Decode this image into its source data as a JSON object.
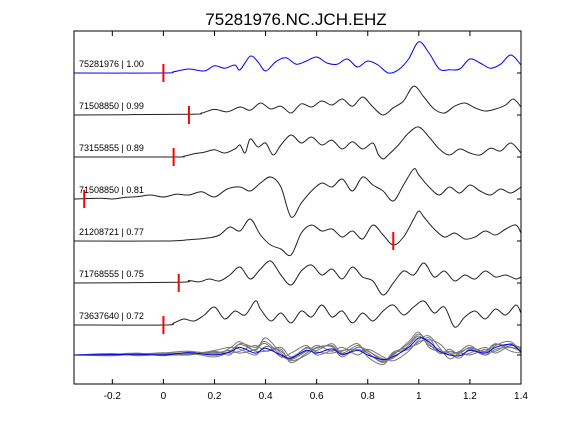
{
  "colors": {
    "primary_trace": "#0000ff",
    "trace": "#222222",
    "stack_gray": "#777777",
    "pick": "#ff0000",
    "axis": "#000000"
  },
  "chart_data": {
    "type": "line",
    "title": "75281976.NC.JCH.EHZ",
    "xlabel": "",
    "ylabel": "",
    "xlim": [
      -0.35,
      1.4
    ],
    "xticks": [
      -0.2,
      0,
      0.2,
      0.4,
      0.6,
      0.8,
      1,
      1.2,
      1.4
    ],
    "xtick_labels": [
      "-0.2",
      "0",
      "0.2",
      "0.4",
      "0.6",
      "0.8",
      "1",
      "1.2",
      "1.4"
    ],
    "grid": false,
    "traces": [
      {
        "label": "75281976 | 1.00",
        "color": "primary",
        "pick": 0.0,
        "x": [
          -0.35,
          0.0,
          0.04,
          0.1,
          0.16,
          0.2,
          0.24,
          0.28,
          0.3,
          0.34,
          0.37,
          0.4,
          0.44,
          0.48,
          0.52,
          0.56,
          0.6,
          0.64,
          0.68,
          0.72,
          0.76,
          0.8,
          0.84,
          0.88,
          0.92,
          0.96,
          1.0,
          1.04,
          1.08,
          1.12,
          1.16,
          1.2,
          1.24,
          1.28,
          1.32,
          1.36,
          1.4
        ],
        "y": [
          0.0,
          0.0,
          0.03,
          0.1,
          0.05,
          0.18,
          0.12,
          0.2,
          0.08,
          0.42,
          0.28,
          0.05,
          0.28,
          0.38,
          0.22,
          0.3,
          0.4,
          0.25,
          0.22,
          0.35,
          0.15,
          0.3,
          0.2,
          0.0,
          0.08,
          0.35,
          0.78,
          0.5,
          0.1,
          0.08,
          0.1,
          0.35,
          0.25,
          0.12,
          0.22,
          0.45,
          0.2
        ]
      },
      {
        "label": "71508850 | 0.99",
        "color": "trace",
        "pick": 0.1,
        "x": [
          -0.35,
          0.1,
          0.15,
          0.2,
          0.25,
          0.3,
          0.34,
          0.38,
          0.42,
          0.46,
          0.5,
          0.54,
          0.58,
          0.62,
          0.66,
          0.7,
          0.74,
          0.78,
          0.82,
          0.86,
          0.9,
          0.94,
          0.98,
          1.02,
          1.06,
          1.1,
          1.14,
          1.18,
          1.22,
          1.26,
          1.3,
          1.34,
          1.37,
          1.4
        ],
        "y": [
          0.0,
          0.02,
          0.05,
          0.14,
          0.08,
          0.2,
          0.12,
          0.3,
          0.15,
          0.22,
          0.05,
          0.28,
          0.2,
          0.35,
          0.25,
          0.4,
          0.22,
          0.45,
          0.2,
          0.0,
          0.18,
          0.35,
          0.72,
          0.45,
          0.15,
          0.05,
          0.22,
          0.3,
          0.18,
          0.1,
          0.15,
          0.25,
          0.4,
          0.2
        ]
      },
      {
        "label": "73155855 | 0.89",
        "color": "trace",
        "pick": 0.04,
        "x": [
          -0.35,
          0.04,
          0.08,
          0.12,
          0.16,
          0.2,
          0.24,
          0.28,
          0.3,
          0.32,
          0.34,
          0.37,
          0.4,
          0.43,
          0.46,
          0.5,
          0.54,
          0.58,
          0.62,
          0.66,
          0.7,
          0.74,
          0.78,
          0.82,
          0.84,
          0.86,
          0.88,
          0.92,
          0.96,
          1.0,
          1.04,
          1.08,
          1.12,
          1.16,
          1.2,
          1.24,
          1.28,
          1.32,
          1.36,
          1.4
        ],
        "y": [
          0.0,
          0.0,
          0.02,
          0.08,
          0.12,
          0.18,
          0.1,
          0.2,
          0.3,
          0.1,
          0.45,
          0.25,
          0.35,
          0.05,
          0.3,
          0.55,
          0.35,
          0.5,
          0.3,
          0.42,
          0.2,
          0.38,
          0.2,
          0.35,
          0.08,
          -0.05,
          0.05,
          0.3,
          0.6,
          0.75,
          0.5,
          0.2,
          0.05,
          0.2,
          0.1,
          0.05,
          0.22,
          0.15,
          0.35,
          0.1
        ]
      },
      {
        "label": "71508850 | 0.81",
        "color": "trace",
        "pick": -0.31,
        "x": [
          -0.35,
          -0.25,
          -0.2,
          -0.15,
          -0.1,
          -0.05,
          0.0,
          0.05,
          0.1,
          0.15,
          0.2,
          0.25,
          0.3,
          0.34,
          0.38,
          0.42,
          0.46,
          0.5,
          0.54,
          0.58,
          0.62,
          0.66,
          0.7,
          0.74,
          0.78,
          0.82,
          0.86,
          0.9,
          0.94,
          0.98,
          1.0,
          1.04,
          1.08,
          1.12,
          1.16,
          1.2,
          1.24,
          1.28,
          1.32,
          1.36,
          1.4
        ],
        "y": [
          0.0,
          0.02,
          0.0,
          0.04,
          0.06,
          0.1,
          0.05,
          0.12,
          0.1,
          0.18,
          0.05,
          0.25,
          0.3,
          0.2,
          0.4,
          0.55,
          0.3,
          -0.45,
          -0.1,
          0.2,
          0.4,
          0.3,
          0.5,
          0.2,
          0.55,
          0.35,
          0.2,
          -0.05,
          0.35,
          0.75,
          0.6,
          0.3,
          0.1,
          0.3,
          0.15,
          0.35,
          0.2,
          0.1,
          0.25,
          0.15,
          0.3
        ]
      },
      {
        "label": "21208721 | 0.77",
        "color": "trace",
        "pick": 0.9,
        "x": [
          -0.35,
          0.0,
          0.1,
          0.18,
          0.22,
          0.26,
          0.3,
          0.34,
          0.38,
          0.42,
          0.46,
          0.5,
          0.54,
          0.58,
          0.62,
          0.66,
          0.7,
          0.74,
          0.78,
          0.82,
          0.86,
          0.9,
          0.94,
          0.98,
          1.0,
          1.02,
          1.06,
          1.1,
          1.14,
          1.18,
          1.22,
          1.26,
          1.3,
          1.34,
          1.38,
          1.4
        ],
        "y": [
          0.0,
          0.0,
          0.03,
          0.08,
          0.15,
          0.35,
          0.25,
          0.55,
          0.15,
          -0.1,
          -0.2,
          -0.35,
          0.2,
          0.4,
          0.25,
          0.3,
          0.1,
          0.25,
          0.05,
          0.4,
          0.15,
          -0.1,
          0.1,
          0.55,
          0.75,
          0.6,
          0.3,
          0.1,
          0.2,
          0.05,
          0.1,
          0.25,
          0.15,
          0.3,
          0.4,
          0.2
        ]
      },
      {
        "label": "71768555 | 0.75",
        "color": "trace",
        "pick": 0.06,
        "x": [
          -0.35,
          0.06,
          0.1,
          0.14,
          0.18,
          0.22,
          0.26,
          0.3,
          0.34,
          0.38,
          0.42,
          0.46,
          0.5,
          0.54,
          0.58,
          0.62,
          0.66,
          0.7,
          0.74,
          0.78,
          0.82,
          0.86,
          0.9,
          0.94,
          0.98,
          1.02,
          1.06,
          1.1,
          1.14,
          1.18,
          1.22,
          1.26,
          1.3,
          1.34,
          1.38,
          1.4
        ],
        "y": [
          0.0,
          0.02,
          0.06,
          0.03,
          0.1,
          0.05,
          0.2,
          0.4,
          0.1,
          0.35,
          0.55,
          0.2,
          -0.05,
          0.3,
          0.45,
          0.2,
          0.35,
          0.1,
          0.4,
          0.15,
          0.05,
          -0.3,
          0.0,
          0.3,
          0.2,
          0.5,
          0.15,
          0.3,
          0.05,
          0.2,
          0.1,
          0.3,
          0.15,
          0.2,
          0.1,
          0.15
        ]
      },
      {
        "label": "73637640 | 0.72",
        "color": "trace",
        "pick": 0.0,
        "x": [
          -0.35,
          0.0,
          0.04,
          0.08,
          0.12,
          0.16,
          0.2,
          0.24,
          0.28,
          0.32,
          0.36,
          0.38,
          0.42,
          0.46,
          0.5,
          0.54,
          0.58,
          0.62,
          0.66,
          0.7,
          0.74,
          0.78,
          0.82,
          0.86,
          0.9,
          0.94,
          0.98,
          1.02,
          1.06,
          1.1,
          1.14,
          1.18,
          1.22,
          1.26,
          1.3,
          1.34,
          1.38,
          1.4
        ],
        "y": [
          0.0,
          0.0,
          0.05,
          0.15,
          0.1,
          0.25,
          0.45,
          0.15,
          0.35,
          0.25,
          0.6,
          0.4,
          0.1,
          0.3,
          0.05,
          0.35,
          0.2,
          0.5,
          0.2,
          0.35,
          0.05,
          0.3,
          0.1,
          0.35,
          0.5,
          0.25,
          0.45,
          0.6,
          0.3,
          0.45,
          -0.05,
          0.2,
          0.35,
          0.15,
          0.4,
          0.25,
          0.5,
          0.3
        ]
      }
    ],
    "stack": {
      "reference": {
        "x": [
          -0.35,
          -0.2,
          -0.1,
          0.0,
          0.1,
          0.2,
          0.26,
          0.3,
          0.36,
          0.4,
          0.46,
          0.5,
          0.56,
          0.6,
          0.66,
          0.7,
          0.76,
          0.8,
          0.86,
          0.9,
          0.96,
          1.0,
          1.04,
          1.08,
          1.12,
          1.16,
          1.2,
          1.26,
          1.3,
          1.36,
          1.4
        ],
        "y": [
          0.0,
          0.01,
          0.02,
          0.0,
          0.06,
          0.0,
          0.08,
          0.2,
          0.05,
          0.18,
          0.0,
          -0.08,
          0.12,
          0.05,
          0.16,
          0.02,
          0.12,
          0.0,
          -0.12,
          -0.04,
          0.2,
          0.45,
          0.35,
          0.1,
          0.0,
          -0.02,
          0.12,
          0.05,
          0.2,
          0.28,
          0.08
        ]
      },
      "overlays": [
        {
          "x": [
            -0.35,
            -0.2,
            -0.1,
            0.0,
            0.1,
            0.2,
            0.26,
            0.3,
            0.36,
            0.4,
            0.46,
            0.5,
            0.56,
            0.6,
            0.66,
            0.7,
            0.76,
            0.8,
            0.86,
            0.9,
            0.96,
            1.0,
            1.04,
            1.08,
            1.12,
            1.16,
            1.2,
            1.26,
            1.3,
            1.36,
            1.4
          ],
          "y": [
            0.0,
            0.03,
            0.0,
            0.05,
            0.1,
            0.02,
            0.18,
            0.35,
            0.12,
            0.45,
            0.05,
            -0.1,
            0.2,
            0.12,
            0.3,
            0.05,
            0.25,
            0.05,
            -0.18,
            0.02,
            0.3,
            0.55,
            0.3,
            0.05,
            0.1,
            0.05,
            0.2,
            0.08,
            0.28,
            0.2,
            0.1
          ]
        },
        {
          "x": [
            -0.35,
            -0.2,
            -0.1,
            0.0,
            0.1,
            0.2,
            0.26,
            0.3,
            0.36,
            0.4,
            0.46,
            0.5,
            0.56,
            0.6,
            0.66,
            0.7,
            0.76,
            0.8,
            0.86,
            0.9,
            0.96,
            1.0,
            1.04,
            1.08,
            1.12,
            1.16,
            1.2,
            1.26,
            1.3,
            1.36,
            1.4
          ],
          "y": [
            0.0,
            -0.02,
            0.03,
            0.0,
            0.02,
            0.08,
            0.05,
            0.1,
            0.25,
            0.1,
            0.15,
            -0.2,
            0.05,
            0.25,
            0.1,
            0.2,
            0.0,
            0.15,
            -0.05,
            -0.15,
            0.1,
            0.4,
            0.5,
            0.2,
            -0.1,
            0.05,
            0.0,
            0.15,
            0.1,
            0.3,
            0.15
          ]
        },
        {
          "x": [
            -0.35,
            -0.2,
            -0.1,
            0.0,
            0.1,
            0.2,
            0.26,
            0.3,
            0.36,
            0.4,
            0.46,
            0.5,
            0.56,
            0.6,
            0.66,
            0.7,
            0.76,
            0.8,
            0.86,
            0.9,
            0.96,
            1.0,
            1.04,
            1.08,
            1.12,
            1.16,
            1.2,
            1.26,
            1.3,
            1.36,
            1.4
          ],
          "y": [
            0.0,
            0.02,
            0.05,
            -0.02,
            0.08,
            0.05,
            0.12,
            0.05,
            0.15,
            0.3,
            -0.05,
            0.05,
            0.25,
            0.0,
            0.12,
            0.1,
            0.3,
            -0.05,
            -0.25,
            0.05,
            0.15,
            0.35,
            0.4,
            0.3,
            0.05,
            -0.08,
            0.15,
            0.0,
            0.25,
            0.35,
            0.05
          ]
        },
        {
          "x": [
            -0.35,
            -0.2,
            -0.1,
            0.0,
            0.1,
            0.2,
            0.26,
            0.3,
            0.36,
            0.4,
            0.46,
            0.5,
            0.56,
            0.6,
            0.66,
            0.7,
            0.76,
            0.8,
            0.86,
            0.9,
            0.96,
            1.0,
            1.04,
            1.08,
            1.12,
            1.16,
            1.2,
            1.26,
            1.3,
            1.36,
            1.4
          ],
          "y": [
            0.0,
            0.0,
            0.04,
            0.02,
            0.0,
            0.12,
            0.2,
            0.15,
            0.0,
            0.22,
            0.1,
            -0.15,
            0.0,
            0.2,
            0.22,
            -0.05,
            0.2,
            0.1,
            -0.1,
            -0.08,
            0.25,
            0.5,
            0.25,
            0.15,
            0.0,
            0.1,
            0.25,
            0.0,
            0.15,
            0.2,
            0.12
          ]
        },
        {
          "x": [
            -0.35,
            -0.2,
            -0.1,
            0.0,
            0.1,
            0.2,
            0.26,
            0.3,
            0.36,
            0.4,
            0.46,
            0.5,
            0.56,
            0.6,
            0.66,
            0.7,
            0.76,
            0.8,
            0.86,
            0.9,
            0.96,
            1.0,
            1.04,
            1.08,
            1.12,
            1.16,
            1.2,
            1.26,
            1.3,
            1.36,
            1.4
          ],
          "y": [
            0.0,
            0.04,
            -0.02,
            0.03,
            0.05,
            -0.05,
            0.1,
            0.28,
            0.1,
            0.1,
            0.2,
            -0.05,
            0.18,
            0.08,
            0.05,
            0.12,
            0.15,
            0.05,
            -0.2,
            0.08,
            0.2,
            0.3,
            0.45,
            0.05,
            0.15,
            0.0,
            0.05,
            0.2,
            0.05,
            0.25,
            0.2
          ]
        },
        {
          "x": [
            -0.35,
            -0.2,
            -0.1,
            0.0,
            0.1,
            0.2,
            0.26,
            0.3,
            0.36,
            0.4,
            0.46,
            0.5,
            0.56,
            0.6,
            0.66,
            0.7,
            0.76,
            0.8,
            0.86,
            0.9,
            0.96,
            1.0,
            1.04,
            1.08,
            1.12,
            1.16,
            1.2,
            1.26,
            1.3,
            1.36,
            1.4
          ],
          "y": [
            0.0,
            0.0,
            0.02,
            0.06,
            0.02,
            0.1,
            0.0,
            0.3,
            0.2,
            0.35,
            0.0,
            -0.12,
            0.1,
            0.18,
            0.25,
            0.0,
            0.2,
            0.12,
            -0.15,
            0.0,
            0.35,
            0.6,
            0.2,
            0.1,
            0.05,
            0.08,
            0.18,
            0.1,
            0.3,
            0.1,
            0.05
          ]
        }
      ]
    }
  }
}
